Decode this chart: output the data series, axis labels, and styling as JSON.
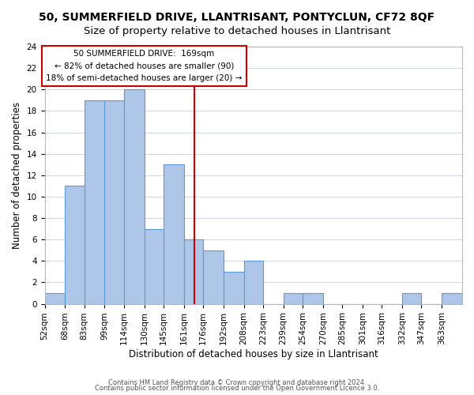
{
  "title": "50, SUMMERFIELD DRIVE, LLANTRISANT, PONTYCLUN, CF72 8QF",
  "subtitle": "Size of property relative to detached houses in Llantrisant",
  "xlabel": "Distribution of detached houses by size in Llantrisant",
  "ylabel": "Number of detached properties",
  "bar_edges": [
    52,
    68,
    83,
    99,
    114,
    130,
    145,
    161,
    176,
    192,
    208,
    223,
    239,
    254,
    270,
    285,
    301,
    316,
    332,
    347,
    363,
    379
  ],
  "bar_heights": [
    1,
    11,
    19,
    19,
    20,
    7,
    13,
    6,
    5,
    3,
    4,
    0,
    1,
    1,
    0,
    0,
    0,
    0,
    1,
    0,
    1
  ],
  "bar_color": "#aec6e8",
  "bar_edgecolor": "#5b9bd5",
  "vline_x": 169,
  "vline_color": "#cc0000",
  "annotation_title": "50 SUMMERFIELD DRIVE:  169sqm",
  "annotation_line1": "← 82% of detached houses are smaller (90)",
  "annotation_line2": "18% of semi-detached houses are larger (20) →",
  "annotation_box_edgecolor": "#cc0000",
  "ylim": [
    0,
    24
  ],
  "yticks": [
    0,
    2,
    4,
    6,
    8,
    10,
    12,
    14,
    16,
    18,
    20,
    22,
    24
  ],
  "xtick_labels": [
    "52sqm",
    "68sqm",
    "83sqm",
    "99sqm",
    "114sqm",
    "130sqm",
    "145sqm",
    "161sqm",
    "176sqm",
    "192sqm",
    "208sqm",
    "223sqm",
    "239sqm",
    "254sqm",
    "270sqm",
    "285sqm",
    "301sqm",
    "316sqm",
    "332sqm",
    "347sqm",
    "363sqm"
  ],
  "footer1": "Contains HM Land Registry data © Crown copyright and database right 2024.",
  "footer2": "Contains public sector information licensed under the Open Government Licence 3.0.",
  "bg_color": "#ffffff",
  "grid_color": "#d0d8e8",
  "title_fontsize": 10,
  "subtitle_fontsize": 9.5,
  "tick_fontsize": 7.5
}
